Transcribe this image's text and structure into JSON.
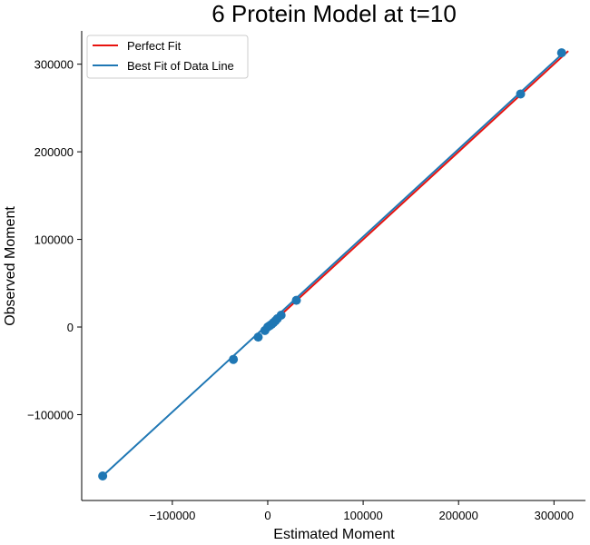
{
  "chart_data": {
    "type": "scatter",
    "title": "6 Protein Model at t=10",
    "xlabel": "Estimated Moment",
    "ylabel": "Observed Moment",
    "xlim": [
      -195000,
      333000
    ],
    "ylim": [
      -198000,
      338000
    ],
    "xticks": [
      -100000,
      0,
      100000,
      200000,
      300000
    ],
    "xtick_labels": [
      "−100000",
      "0",
      "100000",
      "200000",
      "300000"
    ],
    "yticks": [
      -100000,
      0,
      100000,
      200000,
      300000
    ],
    "ytick_labels": [
      "−100000",
      "0",
      "100000",
      "200000",
      "300000"
    ],
    "grid": false,
    "legend_position": "upper-left",
    "points": {
      "x": [
        -173000,
        -36000,
        -10000,
        -3000,
        0,
        2000,
        4000,
        6000,
        8000,
        10000,
        14000,
        30000,
        265000,
        308000
      ],
      "y": [
        -170000,
        -37000,
        -11500,
        -4000,
        0,
        1500,
        3000,
        5000,
        7000,
        9500,
        13500,
        30500,
        266000,
        313000
      ],
      "color": "#1f77b4"
    },
    "series": [
      {
        "name": "Perfect Fit",
        "type": "line",
        "x": [
          0,
          315000
        ],
        "y": [
          0,
          315000
        ],
        "color": "#e8130f"
      },
      {
        "name": "Best Fit of Data Line",
        "type": "line",
        "x": [
          -173000,
          310000
        ],
        "y": [
          -170000,
          313000
        ],
        "color": "#1f77b4"
      }
    ]
  }
}
